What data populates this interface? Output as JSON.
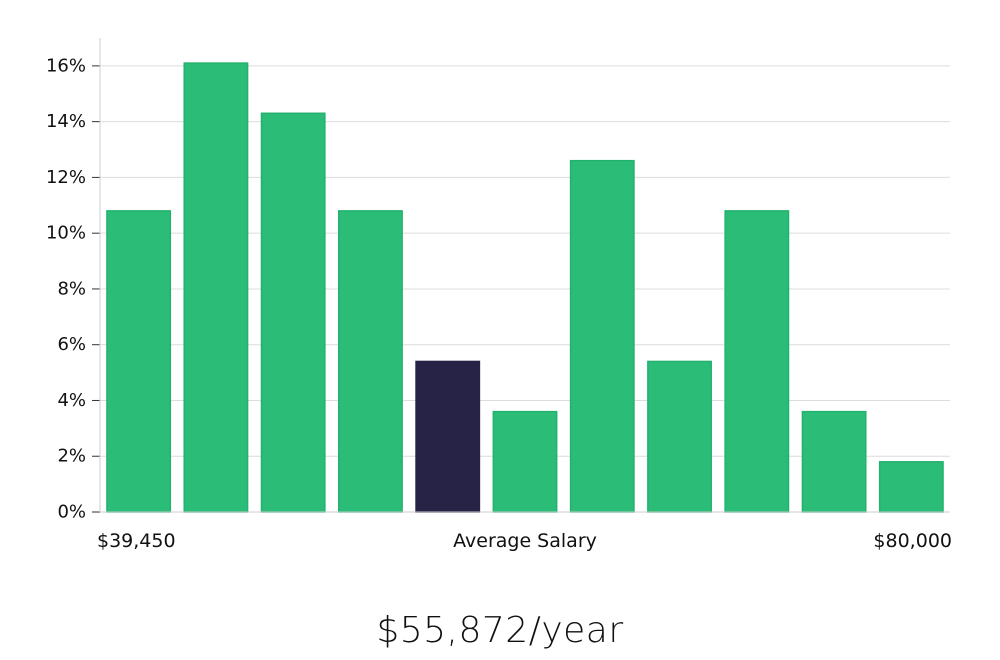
{
  "chart_data": {
    "type": "bar",
    "title": "",
    "xlabel": "Average Salary",
    "ylabel": "",
    "x_range_labels": {
      "min": "$39,450",
      "max": "$80,000"
    },
    "ylim": [
      0,
      17
    ],
    "yticks": [
      0,
      2,
      4,
      6,
      8,
      10,
      12,
      14,
      16
    ],
    "ytick_suffix": "%",
    "values": [
      10.8,
      16.1,
      14.3,
      10.8,
      5.4,
      3.6,
      12.6,
      5.4,
      10.8,
      3.6,
      1.8
    ],
    "highlight_index": 4,
    "colors": {
      "bar": "#2bbd78",
      "bar_edge": "#23b26d",
      "highlight": "#262346",
      "grid": "#dcdcdc",
      "axis": "#cccccc"
    },
    "grid": true
  },
  "headline": "$55,872/year"
}
